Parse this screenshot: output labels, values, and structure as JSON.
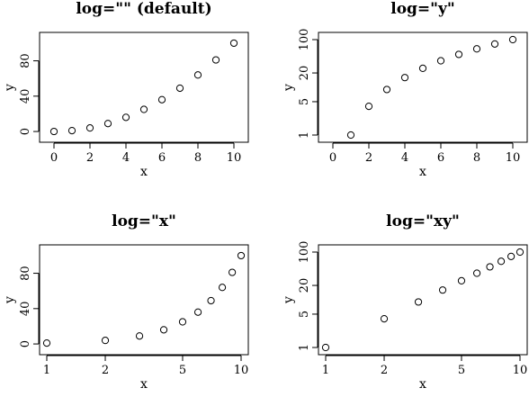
{
  "chart_data": [
    {
      "type": "scatter",
      "title": "log=\"\"  (default)",
      "xlabel": "x",
      "ylabel": "y",
      "log": "",
      "xlim": [
        -0.4,
        10.4
      ],
      "ylim": [
        -4,
        104
      ],
      "xticks": [
        0,
        2,
        4,
        6,
        8,
        10
      ],
      "xtick_labels": [
        "0",
        "2",
        "4",
        "6",
        "8",
        "10"
      ],
      "yticks": [
        0,
        40,
        80
      ],
      "ytick_labels": [
        "0",
        "40",
        "80"
      ],
      "x": [
        0,
        1,
        2,
        3,
        4,
        5,
        6,
        7,
        8,
        9,
        10
      ],
      "y": [
        0,
        1,
        4,
        9,
        16,
        25,
        36,
        49,
        64,
        81,
        100
      ],
      "grid": false,
      "marker": "open-circle"
    },
    {
      "type": "scatter",
      "title": "log=\"y\"",
      "xlabel": "x",
      "ylabel": "y",
      "log": "y",
      "xlim": [
        -0.4,
        10.4
      ],
      "ylim": [
        1,
        100
      ],
      "xticks": [
        0,
        2,
        4,
        6,
        8,
        10
      ],
      "xtick_labels": [
        "0",
        "2",
        "4",
        "6",
        "8",
        "10"
      ],
      "yticks": [
        1,
        5,
        20,
        100
      ],
      "ytick_labels": [
        "1",
        "5",
        "20",
        "100"
      ],
      "x": [
        1,
        2,
        3,
        4,
        5,
        6,
        7,
        8,
        9,
        10
      ],
      "y": [
        1,
        4,
        9,
        16,
        25,
        36,
        49,
        64,
        81,
        100
      ],
      "grid": false,
      "marker": "open-circle"
    },
    {
      "type": "scatter",
      "title": "log=\"x\"",
      "xlabel": "x",
      "ylabel": "y",
      "log": "x",
      "xlim": [
        1,
        10
      ],
      "ylim": [
        -4,
        104
      ],
      "xticks": [
        1,
        2,
        5,
        10
      ],
      "xtick_labels": [
        "1",
        "2",
        "5",
        "10"
      ],
      "yticks": [
        0,
        40,
        80
      ],
      "ytick_labels": [
        "0",
        "40",
        "80"
      ],
      "x": [
        1,
        2,
        3,
        4,
        5,
        6,
        7,
        8,
        9,
        10
      ],
      "y": [
        1,
        4,
        9,
        16,
        25,
        36,
        49,
        64,
        81,
        100
      ],
      "grid": false,
      "marker": "open-circle"
    },
    {
      "type": "scatter",
      "title": "log=\"xy\"",
      "xlabel": "x",
      "ylabel": "y",
      "log": "xy",
      "xlim": [
        1,
        10
      ],
      "ylim": [
        1,
        100
      ],
      "xticks": [
        1,
        2,
        5,
        10
      ],
      "xtick_labels": [
        "1",
        "2",
        "5",
        "10"
      ],
      "yticks": [
        1,
        5,
        20,
        100
      ],
      "ytick_labels": [
        "1",
        "5",
        "20",
        "100"
      ],
      "x": [
        1,
        2,
        3,
        4,
        5,
        6,
        7,
        8,
        9,
        10
      ],
      "y": [
        1,
        4,
        9,
        16,
        25,
        36,
        49,
        64,
        81,
        100
      ],
      "grid": false,
      "marker": "open-circle"
    }
  ]
}
